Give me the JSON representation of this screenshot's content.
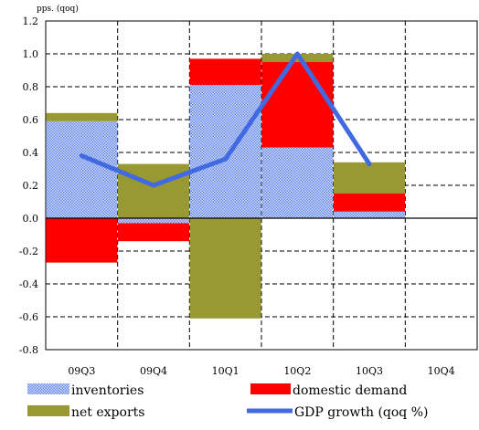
{
  "chart_data": {
    "type": "bar",
    "stacked": true,
    "unit_label": "pps. (qoq)",
    "categories": [
      "09Q3",
      "09Q4",
      "10Q1",
      "10Q2",
      "10Q3",
      "10Q4"
    ],
    "ylim": [
      -0.8,
      1.2
    ],
    "yticks": [
      1.2,
      1.0,
      0.8,
      0.6,
      0.4,
      0.2,
      0.0,
      -0.2,
      -0.4,
      -0.6,
      -0.8
    ],
    "ytick_labels": [
      "1.2",
      "1.0",
      "0.8",
      "0.6",
      "0.4",
      "0.2",
      "0.0",
      "-0.2",
      "-0.4",
      "-0.6",
      "-0.8"
    ],
    "grid": true,
    "legend_position": "bottom",
    "series": [
      {
        "name": "inventories",
        "type": "bar",
        "color": "#9db4f0",
        "pattern": "dotted",
        "values": [
          0.59,
          -0.03,
          0.81,
          0.43,
          0.04,
          null
        ]
      },
      {
        "name": "domestic demand",
        "type": "bar",
        "color": "#ff0000",
        "values": [
          -0.27,
          -0.11,
          0.16,
          0.52,
          0.11,
          null
        ]
      },
      {
        "name": "net exports",
        "type": "bar",
        "color": "#999933",
        "values": [
          0.05,
          0.33,
          -0.61,
          0.05,
          0.19,
          null
        ]
      },
      {
        "name": "GDP growth (qoq %)",
        "type": "line",
        "color": "#4169e1",
        "values": [
          0.38,
          0.2,
          0.36,
          1.0,
          0.33,
          null
        ]
      }
    ]
  }
}
